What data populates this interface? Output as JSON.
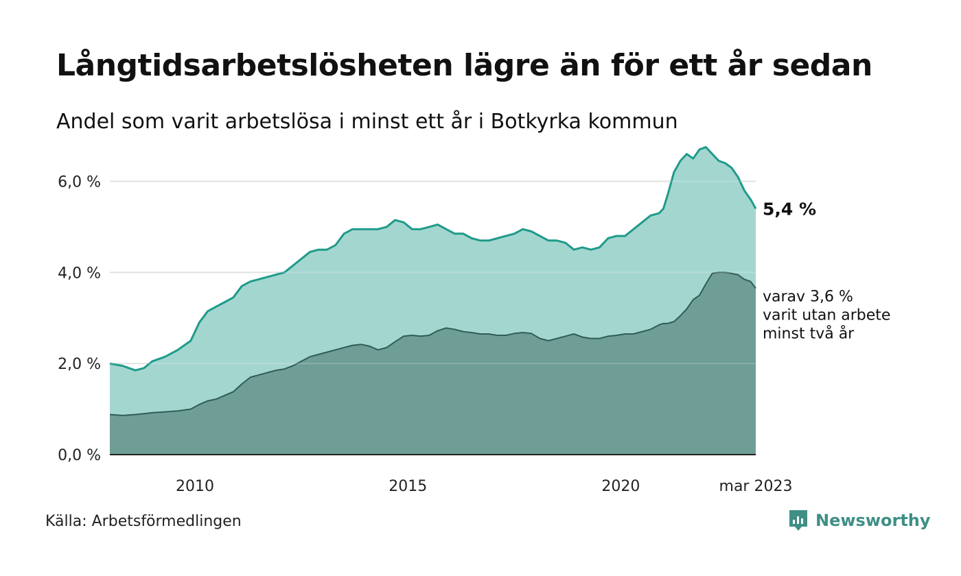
{
  "title": "Långtidsarbetslösheten lägre än för ett år sedan",
  "subtitle": "Andel som varit arbetslösa i minst ett år i Botkyrka kommun",
  "source": "Källa: Arbetsförmedlingen",
  "brand": "Newsworthy",
  "colors": {
    "total_fill": "#a4d6d0",
    "total_line": "#1e9a8a",
    "longterm_fill": "#6f9e97",
    "longterm_line": "#2f5d56",
    "grid": "#dddddd",
    "axis": "#222222",
    "brand": "#3f8f86"
  },
  "annotations": {
    "total_label": "5,4 %",
    "longterm_lines": [
      "varav 3,6 %",
      "varit utan arbete",
      "minst två år"
    ]
  },
  "chart_data": {
    "type": "area",
    "x_unit": "year (decimal)",
    "xlim": [
      2008.0,
      2023.17
    ],
    "ylim": [
      0,
      7
    ],
    "y_ticks": [
      0,
      2,
      4,
      6
    ],
    "y_tick_labels": [
      "0,0 %",
      "2,0 %",
      "4,0 %",
      "6,0 %"
    ],
    "x_ticks": [
      2010,
      2015,
      2020,
      2023.17
    ],
    "x_tick_labels": [
      "2010",
      "2015",
      "2020",
      "mar 2023"
    ],
    "grid": true,
    "series": [
      {
        "role": "total",
        "x": [
          2008.0,
          2008.3,
          2008.6,
          2008.8,
          2009.0,
          2009.3,
          2009.6,
          2009.9,
          2010.1,
          2010.3,
          2010.5,
          2010.7,
          2010.9,
          2011.1,
          2011.3,
          2011.5,
          2011.7,
          2011.9,
          2012.1,
          2012.3,
          2012.5,
          2012.7,
          2012.9,
          2013.1,
          2013.3,
          2013.5,
          2013.7,
          2013.9,
          2014.1,
          2014.3,
          2014.5,
          2014.7,
          2014.9,
          2015.1,
          2015.3,
          2015.5,
          2015.7,
          2015.9,
          2016.1,
          2016.3,
          2016.5,
          2016.7,
          2016.9,
          2017.1,
          2017.3,
          2017.5,
          2017.7,
          2017.9,
          2018.1,
          2018.3,
          2018.5,
          2018.7,
          2018.9,
          2019.1,
          2019.3,
          2019.5,
          2019.7,
          2019.9,
          2020.1,
          2020.3,
          2020.5,
          2020.7,
          2020.9,
          2021.0,
          2021.1,
          2021.25,
          2021.4,
          2021.55,
          2021.7,
          2021.85,
          2022.0,
          2022.15,
          2022.3,
          2022.45,
          2022.6,
          2022.75,
          2022.9,
          2023.05,
          2023.17
        ],
        "y": [
          2.0,
          1.95,
          1.85,
          1.9,
          2.05,
          2.15,
          2.3,
          2.5,
          2.9,
          3.15,
          3.25,
          3.35,
          3.45,
          3.7,
          3.8,
          3.85,
          3.9,
          3.95,
          4.0,
          4.15,
          4.3,
          4.45,
          4.5,
          4.5,
          4.6,
          4.85,
          4.95,
          4.95,
          4.95,
          4.95,
          5.0,
          5.15,
          5.1,
          4.95,
          4.95,
          5.0,
          5.05,
          4.95,
          4.85,
          4.85,
          4.75,
          4.7,
          4.7,
          4.75,
          4.8,
          4.85,
          4.95,
          4.9,
          4.8,
          4.7,
          4.7,
          4.65,
          4.5,
          4.55,
          4.5,
          4.55,
          4.75,
          4.8,
          4.8,
          4.95,
          5.1,
          5.25,
          5.3,
          5.4,
          5.7,
          6.2,
          6.45,
          6.6,
          6.5,
          6.7,
          6.75,
          6.6,
          6.45,
          6.4,
          6.3,
          6.1,
          5.8,
          5.6,
          5.4
        ]
      },
      {
        "role": "longterm",
        "x": [
          2008.0,
          2008.3,
          2008.6,
          2008.8,
          2009.0,
          2009.3,
          2009.6,
          2009.9,
          2010.1,
          2010.3,
          2010.5,
          2010.7,
          2010.9,
          2011.1,
          2011.3,
          2011.5,
          2011.7,
          2011.9,
          2012.1,
          2012.3,
          2012.5,
          2012.7,
          2012.9,
          2013.1,
          2013.3,
          2013.5,
          2013.7,
          2013.9,
          2014.1,
          2014.3,
          2014.5,
          2014.7,
          2014.9,
          2015.1,
          2015.3,
          2015.5,
          2015.7,
          2015.9,
          2016.1,
          2016.3,
          2016.5,
          2016.7,
          2016.9,
          2017.1,
          2017.3,
          2017.5,
          2017.7,
          2017.9,
          2018.1,
          2018.3,
          2018.5,
          2018.7,
          2018.9,
          2019.1,
          2019.3,
          2019.5,
          2019.7,
          2019.9,
          2020.1,
          2020.3,
          2020.5,
          2020.7,
          2020.9,
          2021.0,
          2021.1,
          2021.25,
          2021.4,
          2021.55,
          2021.7,
          2021.85,
          2022.0,
          2022.15,
          2022.3,
          2022.45,
          2022.6,
          2022.75,
          2022.9,
          2023.05,
          2023.17
        ],
        "y": [
          0.88,
          0.86,
          0.88,
          0.9,
          0.92,
          0.94,
          0.96,
          1.0,
          1.1,
          1.18,
          1.22,
          1.3,
          1.38,
          1.55,
          1.7,
          1.75,
          1.8,
          1.85,
          1.88,
          1.95,
          2.05,
          2.15,
          2.2,
          2.25,
          2.3,
          2.35,
          2.4,
          2.42,
          2.38,
          2.3,
          2.35,
          2.48,
          2.6,
          2.62,
          2.6,
          2.62,
          2.72,
          2.78,
          2.75,
          2.7,
          2.68,
          2.65,
          2.65,
          2.62,
          2.62,
          2.66,
          2.68,
          2.66,
          2.55,
          2.5,
          2.55,
          2.6,
          2.65,
          2.58,
          2.55,
          2.55,
          2.6,
          2.62,
          2.65,
          2.65,
          2.7,
          2.75,
          2.85,
          2.88,
          2.88,
          2.92,
          3.05,
          3.2,
          3.4,
          3.5,
          3.75,
          3.98,
          4.0,
          4.0,
          3.98,
          3.95,
          3.85,
          3.8,
          3.65
        ]
      }
    ]
  }
}
